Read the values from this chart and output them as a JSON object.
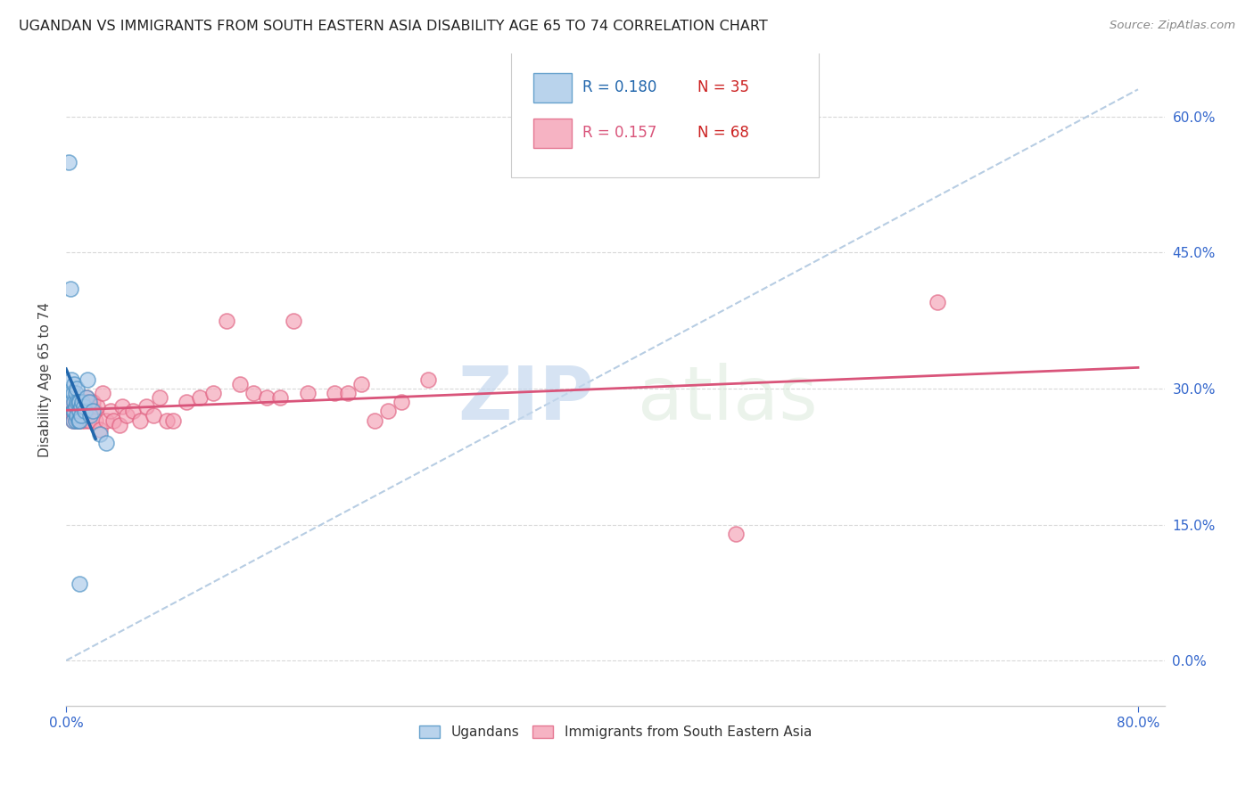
{
  "title": "UGANDAN VS IMMIGRANTS FROM SOUTH EASTERN ASIA DISABILITY AGE 65 TO 74 CORRELATION CHART",
  "source": "Source: ZipAtlas.com",
  "ylabel": "Disability Age 65 to 74",
  "xlim": [
    0.0,
    0.82
  ],
  "ylim": [
    -0.05,
    0.67
  ],
  "yticks": [
    0.0,
    0.15,
    0.3,
    0.45,
    0.6
  ],
  "ytick_labels": [
    "0.0%",
    "15.0%",
    "30.0%",
    "45.0%",
    "60.0%"
  ],
  "xtick_left": 0.0,
  "xtick_right": 0.8,
  "xtick_left_label": "0.0%",
  "xtick_right_label": "80.0%",
  "blue_color": "#a8c8e8",
  "pink_color": "#f4a0b5",
  "blue_edge_color": "#4a90c4",
  "pink_edge_color": "#e06080",
  "blue_line_color": "#2166ac",
  "pink_line_color": "#d9547a",
  "ref_line_color": "#b0c8e0",
  "grid_color": "#d8d8d8",
  "legend_R_blue": "R = 0.180",
  "legend_N_blue": "N = 35",
  "legend_R_pink": "R = 0.157",
  "legend_N_pink": "N = 68",
  "legend_color_R": "#2166ac",
  "legend_color_N": "#cc2222",
  "legend_pink_R": "#d9547a",
  "legend_label_blue": "Ugandans",
  "legend_label_pink": "Immigrants from South Eastern Asia",
  "watermark": "ZIPatlas",
  "axis_tick_color": "#3366cc",
  "title_color": "#222222",
  "blue_ugandan_x": [
    0.002,
    0.003,
    0.003,
    0.004,
    0.004,
    0.005,
    0.005,
    0.005,
    0.006,
    0.006,
    0.006,
    0.007,
    0.007,
    0.007,
    0.008,
    0.008,
    0.008,
    0.009,
    0.009,
    0.01,
    0.01,
    0.01,
    0.011,
    0.011,
    0.012,
    0.013,
    0.014,
    0.015,
    0.016,
    0.017,
    0.018,
    0.02,
    0.025,
    0.03,
    0.01
  ],
  "blue_ugandan_y": [
    0.55,
    0.41,
    0.295,
    0.31,
    0.285,
    0.295,
    0.275,
    0.265,
    0.305,
    0.285,
    0.275,
    0.295,
    0.28,
    0.265,
    0.3,
    0.285,
    0.27,
    0.285,
    0.265,
    0.285,
    0.275,
    0.265,
    0.28,
    0.27,
    0.285,
    0.28,
    0.275,
    0.29,
    0.31,
    0.285,
    0.27,
    0.275,
    0.25,
    0.24,
    0.085
  ],
  "pink_sea_x": [
    0.002,
    0.003,
    0.004,
    0.004,
    0.005,
    0.005,
    0.006,
    0.006,
    0.007,
    0.007,
    0.008,
    0.008,
    0.009,
    0.009,
    0.01,
    0.01,
    0.011,
    0.011,
    0.012,
    0.012,
    0.013,
    0.013,
    0.014,
    0.015,
    0.015,
    0.016,
    0.016,
    0.017,
    0.018,
    0.019,
    0.02,
    0.021,
    0.022,
    0.023,
    0.025,
    0.027,
    0.03,
    0.033,
    0.035,
    0.04,
    0.042,
    0.045,
    0.05,
    0.055,
    0.06,
    0.065,
    0.07,
    0.075,
    0.08,
    0.09,
    0.1,
    0.11,
    0.12,
    0.13,
    0.14,
    0.15,
    0.16,
    0.17,
    0.18,
    0.2,
    0.21,
    0.22,
    0.23,
    0.24,
    0.25,
    0.27,
    0.5,
    0.65
  ],
  "pink_sea_y": [
    0.275,
    0.28,
    0.27,
    0.28,
    0.265,
    0.275,
    0.27,
    0.28,
    0.265,
    0.275,
    0.27,
    0.28,
    0.265,
    0.275,
    0.285,
    0.27,
    0.28,
    0.265,
    0.275,
    0.285,
    0.27,
    0.28,
    0.265,
    0.29,
    0.275,
    0.285,
    0.27,
    0.265,
    0.28,
    0.275,
    0.285,
    0.275,
    0.265,
    0.28,
    0.255,
    0.295,
    0.265,
    0.275,
    0.265,
    0.26,
    0.28,
    0.27,
    0.275,
    0.265,
    0.28,
    0.27,
    0.29,
    0.265,
    0.265,
    0.285,
    0.29,
    0.295,
    0.375,
    0.305,
    0.295,
    0.29,
    0.29,
    0.375,
    0.295,
    0.295,
    0.295,
    0.305,
    0.265,
    0.275,
    0.285,
    0.31,
    0.14,
    0.395
  ],
  "blue_trend_x0": 0.0,
  "blue_trend_x1": 0.02,
  "pink_trend_x0": 0.0,
  "pink_trend_x1": 0.8
}
